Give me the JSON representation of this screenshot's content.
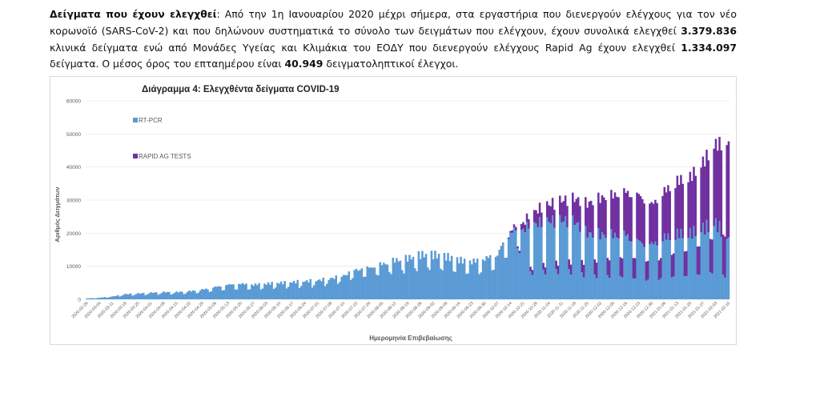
{
  "paragraph": {
    "lead": "Δείγματα που έχουν ελεγχθεί",
    "t1": ": Από την 1η Ιανουαρίου 2020 μέχρι σήμερα, στα εργαστήρια που διενεργούν ελέγχους για τον νέο κορωνοϊό (SARS-CoV-2) και που δηλώνουν συστηματικά το σύνολο των δειγμάτων που ελέγχουν, έχουν συνολικά ελεγχθεί ",
    "n1": "3.379.836",
    "t2": " κλινικά δείγματα ενώ από Μονάδες Υγείας και Κλιμάκια του ΕΟΔΥ που διενεργούν ελέγχους Rapid Ag έχουν ελεγχθεί ",
    "n2": "1.334.097",
    "t3": " δείγματα. Ο μέσος όρος του επταημέρου είναι ",
    "n3": "40.949",
    "t4": " δειγματοληπτικοί έλεγχοι."
  },
  "colors": {
    "rtpcr": "#5b9bd5",
    "rapid": "#7030a0",
    "grid": "#e4e4e4",
    "axis_text": "#595959"
  },
  "chart_data": {
    "type": "bar",
    "stacked": true,
    "title": "Διάγραμμα 4: Ελεγχθέντα δείγματα COVID-19",
    "xlabel": "Ημερομηνία Επιβεβαίωσης",
    "ylabel": "Αριθμός Δειγμάτων",
    "ylim": [
      0,
      60000
    ],
    "yticks": [
      "0",
      "10000",
      "20000",
      "30000",
      "40000",
      "50000",
      "60000"
    ],
    "grid": true,
    "legend_position": "top-left",
    "x_tick_labels": [
      "2020-02-26",
      "2020-03-04",
      "2020-03-11",
      "2020-03-18",
      "2020-03-25",
      "2020-04-01",
      "2020-04-08",
      "2020-04-15",
      "2020-04-22",
      "2020-04-29",
      "2020-05-06",
      "2020-05-13",
      "2020-05-20",
      "2020-05-27",
      "2020-06-03",
      "2020-06-10",
      "2020-06-17",
      "2020-06-24",
      "2020-07-01",
      "2020-07-08",
      "2020-07-15",
      "2020-07-22",
      "2020-07-29",
      "2020-08-05",
      "2020-08-12",
      "2020-08-19",
      "2020-08-26",
      "2020-09-02",
      "2020-09-09",
      "2020-09-16",
      "2020-09-23",
      "2020-09-30",
      "2020-10-07",
      "2020-10-14",
      "2020-10-21",
      "2020-10-28",
      "2020-11-04",
      "2020-11-11",
      "2020-11-18",
      "2020-11-25",
      "2020-12-02",
      "2020-12-09",
      "2020-12-16",
      "2020-12-23",
      "2020-12-30",
      "2021-01-06",
      "2021-01-13",
      "2021-01-20",
      "2021-01-27",
      "2021-02-03",
      "2021-02-10"
    ],
    "series": [
      {
        "name": "RT-PCR",
        "color": "#5b9bd5"
      },
      {
        "name": "RAPID AG TESTS",
        "color": "#7030a0"
      }
    ],
    "weekly_levels": {
      "rtpcr_typical": [
        300,
        500,
        900,
        1600,
        1800,
        2000,
        2200,
        2200,
        2500,
        3000,
        3800,
        4500,
        4800,
        4500,
        4800,
        5000,
        5200,
        5500,
        5800,
        6500,
        7500,
        9500,
        10000,
        11000,
        12000,
        12500,
        13500,
        13500,
        13000,
        12000,
        11500,
        12500,
        14000,
        21000,
        22000,
        23500,
        24000,
        24000,
        23500,
        20000,
        20000,
        20000,
        20000,
        18000,
        17000,
        19000,
        20000,
        20000,
        21500,
        23000,
        18000
      ],
      "rapid_typical": [
        0,
        0,
        0,
        0,
        0,
        0,
        0,
        0,
        0,
        0,
        0,
        0,
        0,
        0,
        0,
        0,
        0,
        0,
        0,
        0,
        0,
        0,
        0,
        0,
        0,
        0,
        0,
        0,
        0,
        0,
        0,
        0,
        0,
        500,
        2000,
        4000,
        5000,
        6000,
        7000,
        9000,
        11000,
        12000,
        13000,
        14000,
        12000,
        14000,
        16000,
        17000,
        20000,
        24000,
        29000
      ]
    }
  }
}
